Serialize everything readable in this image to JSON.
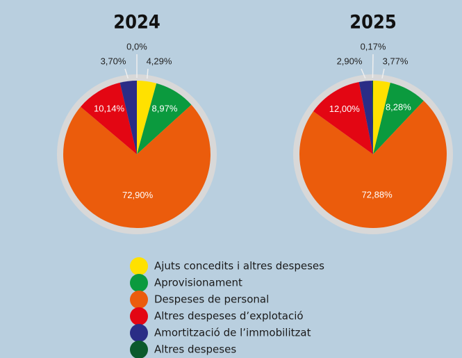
{
  "chart_data": [
    {
      "type": "pie",
      "title": "2024",
      "values": [
        4.29,
        8.97,
        72.9,
        10.14,
        3.7,
        0.0
      ],
      "value_labels": [
        "4,29%",
        "8,97%",
        "72,90%",
        "10,14%",
        "3,70%",
        "0,0%"
      ]
    },
    {
      "type": "pie",
      "title": "2025",
      "values": [
        3.77,
        8.28,
        72.88,
        12.0,
        2.9,
        0.17
      ],
      "value_labels": [
        "3,77%",
        "8,28%",
        "72,88%",
        "12,00%",
        "2,90%",
        "0,17%"
      ]
    }
  ],
  "legend": {
    "labels": [
      "Ajuts concedits i altres despeses",
      "Aprovisionament",
      "Despeses de personal",
      "Altres despeses d’explotació",
      "Amortització de l’immobilitzat",
      "Altres despeses"
    ],
    "colors": [
      "#ffe100",
      "#0b9a3e",
      "#eb5c0c",
      "#e30613",
      "#2a2d86",
      "#0b5a2c"
    ]
  }
}
